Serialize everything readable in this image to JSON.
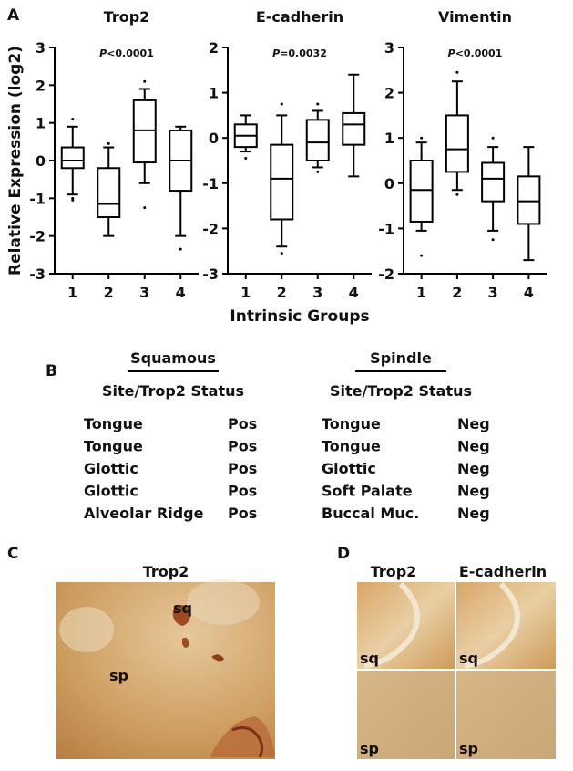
{
  "panel_labels": [
    "A",
    "B",
    "C",
    "D"
  ],
  "chart_data": [
    {
      "type": "box",
      "title": "Trop2",
      "ylabel": "Relative Expression (log2)",
      "pvalue_symbol": "P",
      "pvalue": "<0.0001",
      "categories": [
        "1",
        "2",
        "3",
        "4"
      ],
      "ylim": [
        -3,
        3
      ],
      "yticks": [
        -3,
        -2,
        -1,
        0,
        1,
        2,
        3
      ],
      "boxes": [
        {
          "low": -0.9,
          "q1": -0.2,
          "median": 0,
          "q3": 0.35,
          "high": 0.9,
          "outliers": [
            1.1,
            -1.0,
            -1.05
          ]
        },
        {
          "low": -2.0,
          "q1": -1.5,
          "median": -1.15,
          "q3": -0.2,
          "high": 0.35,
          "outliers": [
            0.45
          ]
        },
        {
          "low": -0.6,
          "q1": -0.05,
          "median": 0.8,
          "q3": 1.6,
          "high": 1.9,
          "outliers": [
            2.1,
            -1.25
          ]
        },
        {
          "low": -2.0,
          "q1": -0.8,
          "median": 0,
          "q3": 0.8,
          "high": 0.9,
          "outliers": [
            -2.35
          ]
        }
      ]
    },
    {
      "type": "box",
      "title": "E-cadherin",
      "xlabel": "Intrinsic Groups",
      "pvalue_symbol": "P",
      "pvalue": "=0.0032",
      "categories": [
        "1",
        "2",
        "3",
        "4"
      ],
      "ylim": [
        -3,
        2
      ],
      "yticks": [
        -3,
        -2,
        -1,
        0,
        1,
        2
      ],
      "boxes": [
        {
          "low": -0.3,
          "q1": -0.2,
          "median": 0.05,
          "q3": 0.3,
          "high": 0.5,
          "outliers": [
            -0.45
          ]
        },
        {
          "low": -2.4,
          "q1": -1.8,
          "median": -0.9,
          "q3": -0.15,
          "high": 0.5,
          "outliers": [
            0.75,
            -2.55
          ]
        },
        {
          "low": -0.65,
          "q1": -0.5,
          "median": -0.1,
          "q3": 0.4,
          "high": 0.6,
          "outliers": [
            0.75,
            -0.75
          ]
        },
        {
          "low": -0.85,
          "q1": -0.15,
          "median": 0.3,
          "q3": 0.55,
          "high": 1.4,
          "outliers": []
        }
      ]
    },
    {
      "type": "box",
      "title": "Vimentin",
      "pvalue_symbol": "P",
      "pvalue": "<0.0001",
      "categories": [
        "1",
        "2",
        "3",
        "4"
      ],
      "ylim": [
        -2,
        3
      ],
      "yticks": [
        -2,
        -1,
        0,
        1,
        2,
        3
      ],
      "boxes": [
        {
          "low": -1.05,
          "q1": -0.85,
          "median": -0.15,
          "q3": 0.5,
          "high": 0.9,
          "outliers": [
            1.0,
            -1.6
          ]
        },
        {
          "low": -0.15,
          "q1": 0.25,
          "median": 0.75,
          "q3": 1.5,
          "high": 2.25,
          "outliers": [
            2.45,
            -0.25
          ]
        },
        {
          "low": -1.05,
          "q1": -0.4,
          "median": 0.1,
          "q3": 0.45,
          "high": 0.8,
          "outliers": [
            1.0,
            -1.25
          ]
        },
        {
          "low": -1.7,
          "q1": -0.9,
          "median": -0.4,
          "q3": 0.15,
          "high": 0.8,
          "outliers": []
        }
      ]
    }
  ],
  "table": {
    "groups": [
      {
        "title": "Squamous",
        "header": "Site/Trop2 Status",
        "rows": [
          [
            "Tongue",
            "Pos"
          ],
          [
            "Tongue",
            "Pos"
          ],
          [
            "Glottic",
            "Pos"
          ],
          [
            "Glottic",
            "Pos"
          ],
          [
            "Alveolar Ridge",
            "Pos"
          ]
        ]
      },
      {
        "title": "Spindle",
        "header": "Site/Trop2 Status",
        "rows": [
          [
            "Tongue",
            "Neg"
          ],
          [
            "Tongue",
            "Neg"
          ],
          [
            "Glottic",
            "Neg"
          ],
          [
            "Soft Palate",
            "Neg"
          ],
          [
            "Buccal Muc.",
            "Neg"
          ]
        ]
      }
    ]
  },
  "panel_c": {
    "title": "Trop2",
    "labels": [
      "sq",
      "sp"
    ]
  },
  "panel_d": {
    "titles": [
      "Trop2",
      "E-cadherin"
    ],
    "labels": [
      "sq",
      "sq",
      "sp",
      "sp"
    ]
  }
}
